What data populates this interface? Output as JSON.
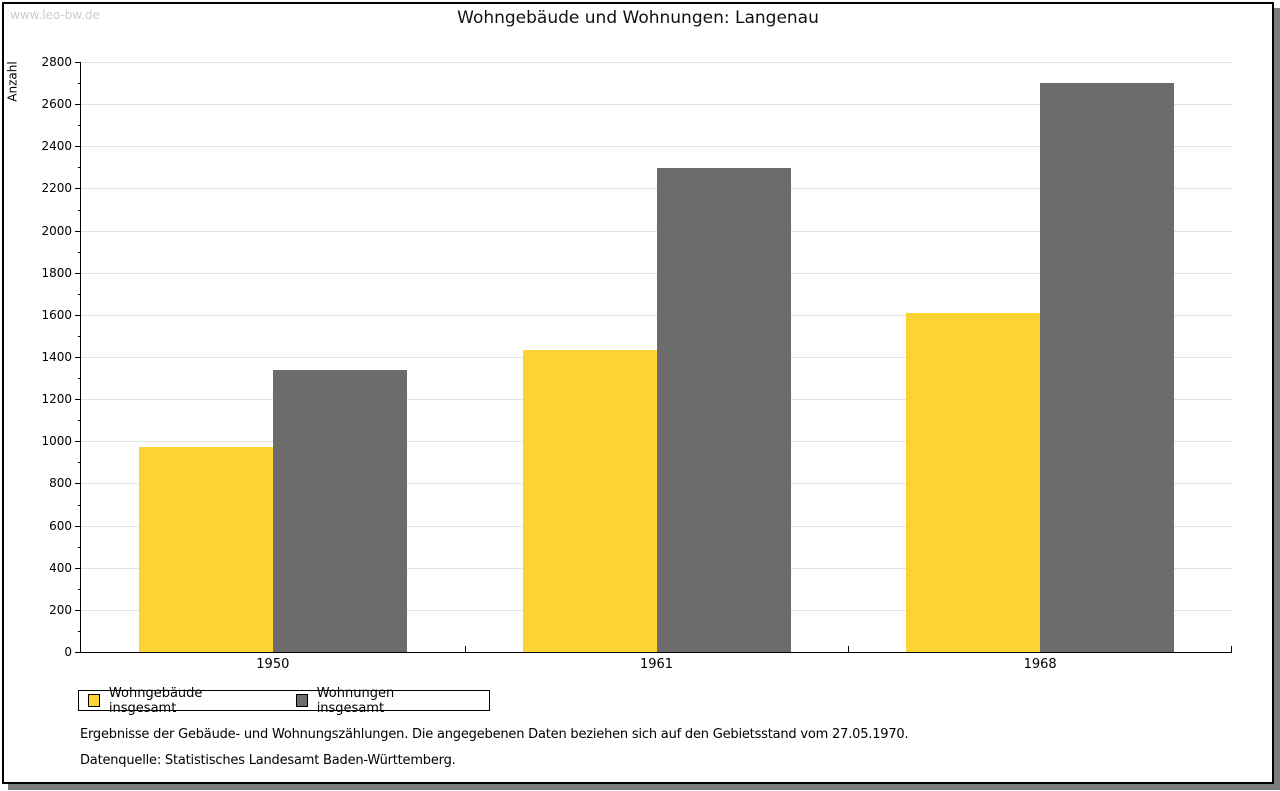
{
  "watermark": "www.leo-bw.de",
  "title": "Wohngebäude und Wohnungen: Langenau",
  "chart_data": {
    "type": "bar",
    "title": "Wohngebäude und Wohnungen: Langenau",
    "categories": [
      "1950",
      "1961",
      "1968"
    ],
    "series": [
      {
        "name": "Wohngebäude insgesamt",
        "color": "#fbd335",
        "values": [
          975,
          1435,
          1610
        ]
      },
      {
        "name": "Wohnungen insgesamt",
        "color": "#6c6c6c",
        "values": [
          1340,
          2295,
          2700
        ]
      }
    ],
    "xlabel": "",
    "ylabel": "Anzahl",
    "ylim": [
      0,
      2800
    ],
    "yticks": [
      0,
      200,
      400,
      600,
      800,
      1000,
      1200,
      1400,
      1600,
      1800,
      2000,
      2200,
      2400,
      2600,
      2800
    ],
    "ytick_minor_step": 100,
    "grid": true,
    "gridline_color": "#e3e3e3",
    "legend_position": "bottom-left"
  },
  "footnotes": {
    "line1": "Ergebnisse der Gebäude- und Wohnungszählungen. Die angegebenen Daten beziehen sich auf den Gebietsstand vom 27.05.1970.",
    "line2": "Datenquelle: Statistisches Landesamt Baden-Württemberg."
  }
}
